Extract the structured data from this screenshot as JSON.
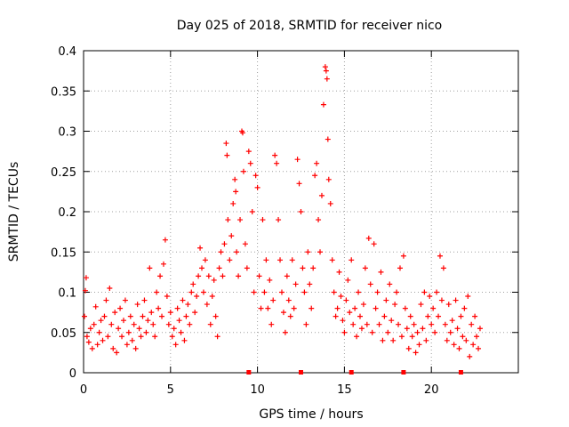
{
  "chart_data": {
    "type": "scatter",
    "title": "Day 025 of 2018, SRMTID for receiver nico",
    "xlabel": "GPS time / hours",
    "ylabel": "SRMTID / TECUs",
    "xlim": [
      0,
      25
    ],
    "ylim": [
      0,
      0.4
    ],
    "x_ticks": [
      0,
      5,
      10,
      15,
      20
    ],
    "x_tick_labels": [
      "0",
      "5",
      "10",
      "15",
      "20"
    ],
    "y_ticks": [
      0,
      0.05,
      0.1,
      0.15,
      0.2,
      0.25,
      0.3,
      0.35,
      0.4
    ],
    "y_tick_labels": [
      "0",
      "0.05",
      "0.1",
      "0.15",
      "0.2",
      "0.25",
      "0.3",
      "0.35",
      "0.4"
    ],
    "grid": true,
    "marker": "plus",
    "color": "#ff0000",
    "baseline_markers_x": [
      9.5,
      12.5,
      15.4,
      18.4,
      21.7
    ],
    "series": [
      {
        "points": [
          [
            0.05,
            0.07
          ],
          [
            0.1,
            0.102
          ],
          [
            0.15,
            0.118
          ],
          [
            0.2,
            0.045
          ],
          [
            0.3,
            0.038
          ],
          [
            0.4,
            0.055
          ],
          [
            0.5,
            0.03
          ],
          [
            0.6,
            0.06
          ],
          [
            0.7,
            0.082
          ],
          [
            0.8,
            0.035
          ],
          [
            0.9,
            0.05
          ],
          [
            1.0,
            0.065
          ],
          [
            1.1,
            0.04
          ],
          [
            1.2,
            0.07
          ],
          [
            1.3,
            0.09
          ],
          [
            1.4,
            0.045
          ],
          [
            1.5,
            0.105
          ],
          [
            1.6,
            0.06
          ],
          [
            1.7,
            0.03
          ],
          [
            1.8,
            0.075
          ],
          [
            1.9,
            0.025
          ],
          [
            2.0,
            0.055
          ],
          [
            2.1,
            0.08
          ],
          [
            2.2,
            0.045
          ],
          [
            2.3,
            0.065
          ],
          [
            2.4,
            0.09
          ],
          [
            2.5,
            0.035
          ],
          [
            2.6,
            0.05
          ],
          [
            2.7,
            0.07
          ],
          [
            2.8,
            0.04
          ],
          [
            2.9,
            0.06
          ],
          [
            3.0,
            0.03
          ],
          [
            3.1,
            0.085
          ],
          [
            3.2,
            0.055
          ],
          [
            3.3,
            0.045
          ],
          [
            3.4,
            0.07
          ],
          [
            3.5,
            0.09
          ],
          [
            3.6,
            0.05
          ],
          [
            3.7,
            0.065
          ],
          [
            3.8,
            0.13
          ],
          [
            3.9,
            0.075
          ],
          [
            4.0,
            0.06
          ],
          [
            4.1,
            0.045
          ],
          [
            4.2,
            0.1
          ],
          [
            4.3,
            0.08
          ],
          [
            4.4,
            0.12
          ],
          [
            4.5,
            0.07
          ],
          [
            4.6,
            0.135
          ],
          [
            4.7,
            0.165
          ],
          [
            4.8,
            0.095
          ],
          [
            4.9,
            0.06
          ],
          [
            5.0,
            0.075
          ],
          [
            5.1,
            0.045
          ],
          [
            5.2,
            0.055
          ],
          [
            5.3,
            0.035
          ],
          [
            5.4,
            0.08
          ],
          [
            5.5,
            0.065
          ],
          [
            5.6,
            0.05
          ],
          [
            5.7,
            0.09
          ],
          [
            5.8,
            0.04
          ],
          [
            5.9,
            0.07
          ],
          [
            6.0,
            0.085
          ],
          [
            6.1,
            0.06
          ],
          [
            6.2,
            0.1
          ],
          [
            6.3,
            0.11
          ],
          [
            6.4,
            0.075
          ],
          [
            6.5,
            0.095
          ],
          [
            6.6,
            0.12
          ],
          [
            6.7,
            0.155
          ],
          [
            6.8,
            0.13
          ],
          [
            6.9,
            0.1
          ],
          [
            7.0,
            0.14
          ],
          [
            7.1,
            0.085
          ],
          [
            7.2,
            0.12
          ],
          [
            7.3,
            0.06
          ],
          [
            7.4,
            0.095
          ],
          [
            7.5,
            0.115
          ],
          [
            7.6,
            0.07
          ],
          [
            7.7,
            0.045
          ],
          [
            7.8,
            0.13
          ],
          [
            7.9,
            0.15
          ],
          [
            8.0,
            0.12
          ],
          [
            8.1,
            0.16
          ],
          [
            8.2,
            0.285
          ],
          [
            8.25,
            0.27
          ],
          [
            8.3,
            0.19
          ],
          [
            8.4,
            0.14
          ],
          [
            8.5,
            0.17
          ],
          [
            8.6,
            0.21
          ],
          [
            8.7,
            0.24
          ],
          [
            8.75,
            0.225
          ],
          [
            8.8,
            0.15
          ],
          [
            8.9,
            0.12
          ],
          [
            9.0,
            0.19
          ],
          [
            9.1,
            0.3
          ],
          [
            9.15,
            0.298
          ],
          [
            9.2,
            0.25
          ],
          [
            9.3,
            0.16
          ],
          [
            9.4,
            0.13
          ],
          [
            9.5,
            0.275
          ],
          [
            9.6,
            0.26
          ],
          [
            9.7,
            0.2
          ],
          [
            9.8,
            0.1
          ],
          [
            9.9,
            0.245
          ],
          [
            10.0,
            0.23
          ],
          [
            10.1,
            0.12
          ],
          [
            10.2,
            0.08
          ],
          [
            10.3,
            0.19
          ],
          [
            10.4,
            0.1
          ],
          [
            10.5,
            0.14
          ],
          [
            10.6,
            0.08
          ],
          [
            10.7,
            0.115
          ],
          [
            10.8,
            0.06
          ],
          [
            10.9,
            0.09
          ],
          [
            11.0,
            0.27
          ],
          [
            11.1,
            0.26
          ],
          [
            11.2,
            0.19
          ],
          [
            11.3,
            0.14
          ],
          [
            11.4,
            0.1
          ],
          [
            11.5,
            0.075
          ],
          [
            11.6,
            0.05
          ],
          [
            11.7,
            0.12
          ],
          [
            11.8,
            0.09
          ],
          [
            11.9,
            0.07
          ],
          [
            12.0,
            0.14
          ],
          [
            12.1,
            0.08
          ],
          [
            12.2,
            0.11
          ],
          [
            12.3,
            0.265
          ],
          [
            12.4,
            0.235
          ],
          [
            12.5,
            0.2
          ],
          [
            12.6,
            0.13
          ],
          [
            12.7,
            0.1
          ],
          [
            12.8,
            0.06
          ],
          [
            12.9,
            0.15
          ],
          [
            13.0,
            0.11
          ],
          [
            13.1,
            0.08
          ],
          [
            13.2,
            0.13
          ],
          [
            13.3,
            0.245
          ],
          [
            13.4,
            0.26
          ],
          [
            13.5,
            0.19
          ],
          [
            13.6,
            0.15
          ],
          [
            13.7,
            0.22
          ],
          [
            13.8,
            0.333
          ],
          [
            13.9,
            0.38
          ],
          [
            13.95,
            0.375
          ],
          [
            14.0,
            0.365
          ],
          [
            14.05,
            0.29
          ],
          [
            14.1,
            0.24
          ],
          [
            14.2,
            0.21
          ],
          [
            14.3,
            0.14
          ],
          [
            14.4,
            0.1
          ],
          [
            14.5,
            0.07
          ],
          [
            14.6,
            0.08
          ],
          [
            14.7,
            0.125
          ],
          [
            14.8,
            0.095
          ],
          [
            14.9,
            0.065
          ],
          [
            15.0,
            0.05
          ],
          [
            15.1,
            0.09
          ],
          [
            15.2,
            0.115
          ],
          [
            15.3,
            0.075
          ],
          [
            15.4,
            0.14
          ],
          [
            15.5,
            0.06
          ],
          [
            15.6,
            0.08
          ],
          [
            15.7,
            0.045
          ],
          [
            15.8,
            0.1
          ],
          [
            15.9,
            0.07
          ],
          [
            16.0,
            0.055
          ],
          [
            16.1,
            0.085
          ],
          [
            16.2,
            0.13
          ],
          [
            16.3,
            0.06
          ],
          [
            16.4,
            0.167
          ],
          [
            16.5,
            0.11
          ],
          [
            16.6,
            0.05
          ],
          [
            16.7,
            0.16
          ],
          [
            16.8,
            0.08
          ],
          [
            16.9,
            0.1
          ],
          [
            17.0,
            0.06
          ],
          [
            17.1,
            0.125
          ],
          [
            17.2,
            0.04
          ],
          [
            17.3,
            0.07
          ],
          [
            17.4,
            0.09
          ],
          [
            17.5,
            0.05
          ],
          [
            17.6,
            0.11
          ],
          [
            17.7,
            0.065
          ],
          [
            17.8,
            0.04
          ],
          [
            17.9,
            0.085
          ],
          [
            18.0,
            0.1
          ],
          [
            18.1,
            0.06
          ],
          [
            18.2,
            0.13
          ],
          [
            18.3,
            0.045
          ],
          [
            18.4,
            0.145
          ],
          [
            18.5,
            0.08
          ],
          [
            18.6,
            0.055
          ],
          [
            18.7,
            0.03
          ],
          [
            18.8,
            0.07
          ],
          [
            18.9,
            0.045
          ],
          [
            19.0,
            0.06
          ],
          [
            19.1,
            0.025
          ],
          [
            19.2,
            0.05
          ],
          [
            19.3,
            0.035
          ],
          [
            19.4,
            0.085
          ],
          [
            19.5,
            0.055
          ],
          [
            19.6,
            0.1
          ],
          [
            19.7,
            0.04
          ],
          [
            19.8,
            0.07
          ],
          [
            19.9,
            0.095
          ],
          [
            20.0,
            0.06
          ],
          [
            20.1,
            0.08
          ],
          [
            20.2,
            0.05
          ],
          [
            20.3,
            0.1
          ],
          [
            20.4,
            0.07
          ],
          [
            20.5,
            0.145
          ],
          [
            20.6,
            0.09
          ],
          [
            20.7,
            0.13
          ],
          [
            20.8,
            0.06
          ],
          [
            20.9,
            0.04
          ],
          [
            21.0,
            0.085
          ],
          [
            21.1,
            0.05
          ],
          [
            21.2,
            0.065
          ],
          [
            21.3,
            0.035
          ],
          [
            21.4,
            0.09
          ],
          [
            21.5,
            0.055
          ],
          [
            21.6,
            0.03
          ],
          [
            21.7,
            0.07
          ],
          [
            21.8,
            0.045
          ],
          [
            21.9,
            0.08
          ],
          [
            22.0,
            0.04
          ],
          [
            22.1,
            0.095
          ],
          [
            22.2,
            0.02
          ],
          [
            22.3,
            0.06
          ],
          [
            22.4,
            0.035
          ],
          [
            22.5,
            0.07
          ],
          [
            22.6,
            0.045
          ],
          [
            22.7,
            0.03
          ],
          [
            22.8,
            0.055
          ]
        ]
      }
    ]
  }
}
